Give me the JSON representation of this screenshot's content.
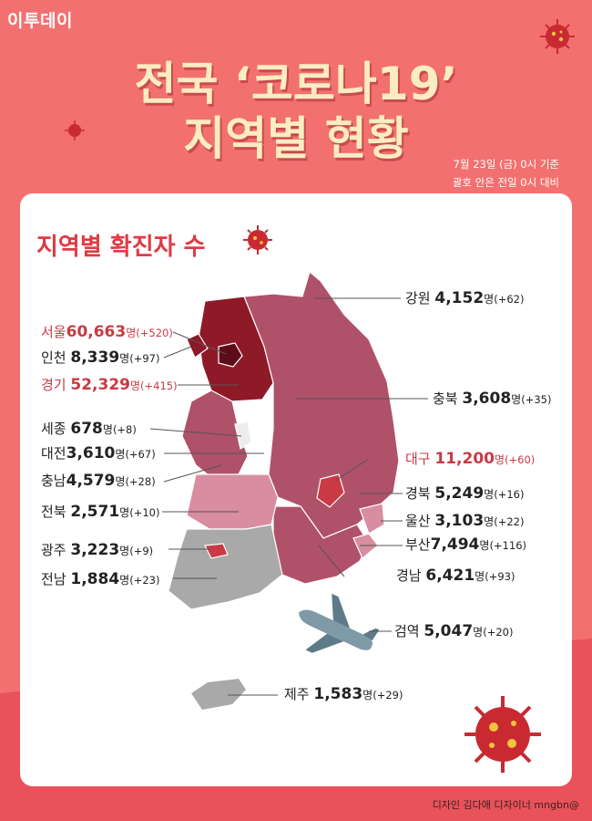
{
  "brand": "이투데이",
  "title_line1": "전국 ‘코로나19’",
  "title_line2": "지역별 현황",
  "basis_line1": "7월 23일 (금) 0시 기준",
  "basis_line2": "괄호 안은 전일 0시 대비",
  "section_title": "지역별 확진자 수",
  "unit": "명",
  "regions": [
    {
      "name": "강원",
      "count": "4,152",
      "change": "(+62)"
    },
    {
      "name": "서울",
      "count": "60,663",
      "change": "(+520)"
    },
    {
      "name": "인천",
      "count": "8,339",
      "change": "(+97)"
    },
    {
      "name": "경기",
      "count": "52,329",
      "change": "(+415)"
    },
    {
      "name": "충북",
      "count": "3,608",
      "change": "(+35)"
    },
    {
      "name": "세종",
      "count": "678",
      "change": "(+8)"
    },
    {
      "name": "대전",
      "count": "3,610",
      "change": "(+67)"
    },
    {
      "name": "대구",
      "count": "11,200",
      "change": "(+60)"
    },
    {
      "name": "충남",
      "count": "4,579",
      "change": "(+28)"
    },
    {
      "name": "경북",
      "count": "5,249",
      "change": "(+16)"
    },
    {
      "name": "전북",
      "count": "2,571",
      "change": "(+10)"
    },
    {
      "name": "울산",
      "count": "3,103",
      "change": "(+22)"
    },
    {
      "name": "부산",
      "count": "7,494",
      "change": "(+116)"
    },
    {
      "name": "광주",
      "count": "3,223",
      "change": "(+9)"
    },
    {
      "name": "경남",
      "count": "6,421",
      "change": "(+93)"
    },
    {
      "name": "전남",
      "count": "1,884",
      "change": "(+23)"
    },
    {
      "name": "검역",
      "count": "5,047",
      "change": "(+20)"
    },
    {
      "name": "제주",
      "count": "1,583",
      "change": "(+29)"
    }
  ],
  "credit": "디자인 김다애 디자이너 mngbn@",
  "colors": {
    "background": "#f2706f",
    "title": "#fbecc3",
    "highlight": "#c93a44",
    "dark_region": "#8e1a28",
    "mid_region": "#a8485f",
    "light_region": "#d88da0",
    "gray_region": "#a9a9a9"
  },
  "icons": [
    "virus-icon",
    "airplane-icon"
  ]
}
